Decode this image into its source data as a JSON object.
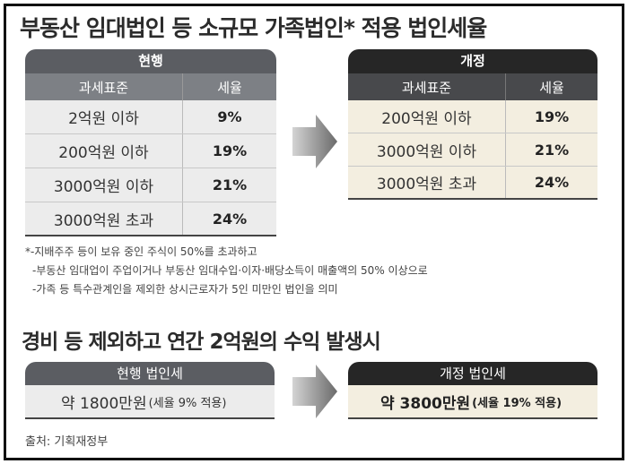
{
  "title": "부동산 임대법인 등 소규모 가족법인* 적용 법인세율",
  "current_table": {
    "header": "현행",
    "col_base": "과세표준",
    "col_rate": "세율",
    "rows": [
      {
        "base": "2억원 이하",
        "rate": "9%"
      },
      {
        "base": "200억원 이하",
        "rate": "19%"
      },
      {
        "base": "3000억원 이하",
        "rate": "21%"
      },
      {
        "base": "3000억원 초과",
        "rate": "24%"
      }
    ]
  },
  "revised_table": {
    "header": "개정",
    "col_base": "과세표준",
    "col_rate": "세율",
    "rows": [
      {
        "base": "200억원 이하",
        "rate": "19%"
      },
      {
        "base": "3000억원 이하",
        "rate": "21%"
      },
      {
        "base": "3000억원 초과",
        "rate": "24%"
      }
    ]
  },
  "notes": [
    "*-지배주주 등이 보유 중인 주식이 50%를 초과하고",
    "-부동산 임대업이 주업이거나 부동산 임대수입·이자·배당소득이 매출액의 50% 이상으로",
    "-가족 등 특수관계인을 제외한 상시근로자가 5인 미만인 법인을 의미"
  ],
  "subtitle": "경비 등 제외하고 연간 2억원의 수익 발생시",
  "current_tax": {
    "header": "현행 법인세",
    "amount": "약 1800만원",
    "detail": "(세율 9% 적용)"
  },
  "revised_tax": {
    "header": "개정 법인세",
    "amount": "약 3800만원",
    "detail": "(세율 19% 적용)"
  },
  "source": "출처: 기획재정부",
  "colors": {
    "current_header": "#5b5d62",
    "revised_header": "#262626",
    "current_body": "#ececec",
    "revised_body": "#f3eee0"
  }
}
